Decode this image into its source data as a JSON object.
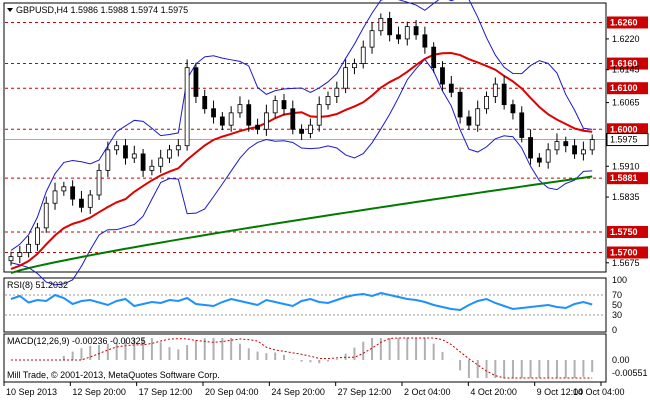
{
  "main": {
    "header": "GBPUSD,H4  1.5986 1.5988 1.5974 1.5975",
    "price_ticks": [
      "1.6220",
      "1.6145",
      "1.6065",
      "1.5910",
      "1.5835",
      "1.5675"
    ],
    "levels": [
      {
        "label": "1.6260",
        "value": 1.626
      },
      {
        "label": "1.6160",
        "value": 1.616
      },
      {
        "label": "1.6100",
        "value": 1.61
      },
      {
        "label": "1.6000",
        "value": 1.6
      },
      {
        "label": "1.5881",
        "value": 1.5881
      },
      {
        "label": "1.5750",
        "value": 1.575
      },
      {
        "label": "1.5700",
        "value": 1.57
      }
    ],
    "current_price": {
      "label": "1.5975",
      "value": 1.5975
    },
    "y_range": [
      1.5655,
      1.6305
    ]
  },
  "rsi": {
    "header": "RSI(8) 51.2032",
    "ticks": [
      "100",
      "70",
      "50",
      "30",
      "0"
    ]
  },
  "macd": {
    "header": "MACD(12,26,9) -0.00236 -0.00325",
    "ticks": [
      "0.00",
      "-0.00551"
    ]
  },
  "copyright": "Mill Trade, © 2001-2013, MetaQuotes Software Corp.",
  "time_labels": [
    "10 Sep 2013",
    "12 Sep 20:00",
    "17 Sep 12:00",
    "20 Sep 04:00",
    "24 Sep 20:00",
    "27 Sep 12:00",
    "2 Oct 04:00",
    "4 Oct 20:00",
    "9 Oct 12:00",
    "14 Oct 04:00"
  ],
  "colors": {
    "level": "#cc0000",
    "ma_fast": "#e00000",
    "ma_slow": "#007a00",
    "bands": "#1a1acc",
    "rsi": "#1e90ff",
    "macd": "#cc0000"
  },
  "chart_data": {
    "type": "candlestick",
    "symbol": "GBPUSD",
    "timeframe": "H4",
    "ohlc_last": {
      "open": 1.5986,
      "high": 1.5988,
      "low": 1.5974,
      "close": 1.5975
    },
    "approx_close": [
      1.569,
      1.57,
      1.572,
      1.576,
      1.582,
      1.585,
      1.586,
      1.583,
      1.581,
      1.584,
      1.59,
      1.595,
      1.596,
      1.593,
      1.594,
      1.59,
      1.591,
      1.593,
      1.595,
      1.596,
      1.615,
      1.608,
      1.605,
      1.603,
      1.601,
      1.604,
      1.606,
      1.601,
      1.6,
      1.604,
      1.607,
      1.605,
      1.6,
      1.599,
      1.601,
      1.606,
      1.608,
      1.61,
      1.615,
      1.616,
      1.62,
      1.624,
      1.627,
      1.623,
      1.622,
      1.625,
      1.623,
      1.62,
      1.615,
      1.611,
      1.609,
      1.603,
      1.601,
      1.605,
      1.608,
      1.611,
      1.606,
      1.604,
      1.598,
      1.593,
      1.592,
      1.595,
      1.597,
      1.596,
      1.594,
      1.595,
      1.5975
    ],
    "rsi_approx": [
      62,
      68,
      55,
      60,
      58,
      70,
      64,
      52,
      58,
      60,
      55,
      50,
      58,
      62,
      48,
      52,
      56,
      54,
      60,
      58,
      64,
      52,
      50,
      48,
      56,
      62,
      58,
      54,
      50,
      60,
      56,
      52,
      48,
      58,
      62,
      56,
      54,
      60,
      66,
      70,
      72,
      68,
      74,
      70,
      66,
      62,
      60,
      56,
      50,
      46,
      42,
      40,
      50,
      58,
      62,
      54,
      48,
      42,
      44,
      46,
      48,
      50,
      46,
      44,
      52,
      56,
      51
    ],
    "ylim": [
      1.5655,
      1.6305
    ]
  }
}
